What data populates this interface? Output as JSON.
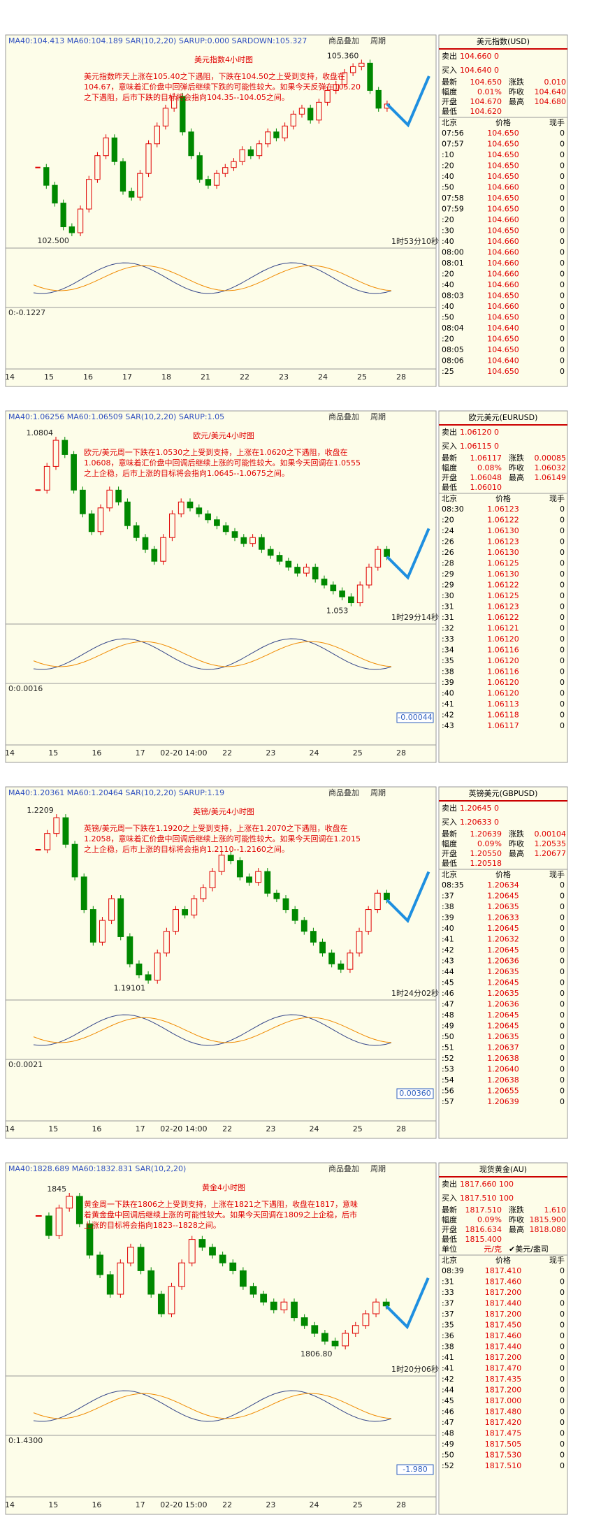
{
  "panels": [
    {
      "title": "美元指数4小时图",
      "indicator": "MA40:104.413 MA60:104.189 SAR(10,2,20) SARUP:0.000 SARDOWN:105.327",
      "buttons": [
        "商品叠加",
        "周期"
      ],
      "annotation": "美元指数昨天上涨在105.40之下遇阻，下跌在104.50之上受到支持，收盘在104.67，意味着汇价盘中回弹后继续下跌的可能性较大。如果今天反弹在105.20之下遇阻，后市下跌的目标将会指向104.35--104.05之间。",
      "high_label": "105.360",
      "low_label": "102.500",
      "timer": "1时53分10秒",
      "macd_label": "0:-0.1227",
      "x_labels": [
        "14",
        "15",
        "16",
        "17",
        "18",
        "21",
        "22",
        "23",
        "24",
        "25",
        "28"
      ],
      "ylim": [
        102.3,
        105.6
      ],
      "closes": [
        103.6,
        103.3,
        103.0,
        102.6,
        102.5,
        102.9,
        103.4,
        103.8,
        104.1,
        103.7,
        103.2,
        103.1,
        103.5,
        104.0,
        104.3,
        104.6,
        104.8,
        104.2,
        103.8,
        103.4,
        103.3,
        103.5,
        103.6,
        103.7,
        103.9,
        103.8,
        104.0,
        104.2,
        104.1,
        104.3,
        104.5,
        104.6,
        104.4,
        104.7,
        104.9,
        105.0,
        105.2,
        105.3,
        105.36,
        104.9,
        104.6,
        104.67
      ],
      "quote": {
        "name": "美元指数(USD)",
        "sell": [
          "卖出",
          "104.660 0"
        ],
        "buy": [
          "买入",
          "104.640 0"
        ],
        "stats": [
          [
            "最新",
            "104.650",
            "涨跌",
            "0.010"
          ],
          [
            "幅度",
            "0.01%",
            "昨收",
            "104.640"
          ],
          [
            "开盘",
            "104.670",
            "最高",
            "104.680"
          ],
          [
            "最低",
            "104.620"
          ]
        ],
        "header": [
          "北京",
          "价格",
          "现手"
        ],
        "rows": [
          [
            "07:56",
            "104.650",
            "0"
          ],
          [
            "07:57",
            "104.650",
            "0"
          ],
          [
            ":10",
            "104.650",
            "0"
          ],
          [
            ":20",
            "104.650",
            "0"
          ],
          [
            ":40",
            "104.650",
            "0"
          ],
          [
            ":50",
            "104.660",
            "0"
          ],
          [
            "07:58",
            "104.650",
            "0"
          ],
          [
            "07:59",
            "104.650",
            "0"
          ],
          [
            ":20",
            "104.660",
            "0"
          ],
          [
            ":30",
            "104.650",
            "0"
          ],
          [
            ":40",
            "104.660",
            "0"
          ],
          [
            "08:00",
            "104.660",
            "0"
          ],
          [
            "08:01",
            "104.660",
            "0"
          ],
          [
            ":20",
            "104.660",
            "0"
          ],
          [
            ":40",
            "104.660",
            "0"
          ],
          [
            "08:03",
            "104.650",
            "0"
          ],
          [
            ":40",
            "104.660",
            "0"
          ],
          [
            ":50",
            "104.650",
            "0"
          ],
          [
            "08:04",
            "104.640",
            "0"
          ],
          [
            ":20",
            "104.650",
            "0"
          ],
          [
            "08:05",
            "104.650",
            "0"
          ],
          [
            "08:06",
            "104.640",
            "0"
          ],
          [
            ":25",
            "104.650",
            "0"
          ]
        ]
      }
    },
    {
      "title": "欧元/美元4小时图",
      "indicator": "MA40:1.06256 MA60:1.06509 SAR(10,2,20) SARUP:1.05",
      "buttons": [
        "商品叠加",
        "周期"
      ],
      "annotation": "欧元/美元周一下跌在1.0530之上受到支持，上涨在1.0620之下遇阻，收盘在1.0608，意味着汇价盘中回调后继续上涨的可能性较大。如果今天回调在1.0555之上企稳，后市上涨的目标将会指向1.0645--1.0675之间。",
      "high_label": "1.0804",
      "low_label": "1.053",
      "timer": "1时29分14秒",
      "macd_label": "0:0.0016",
      "right_label": "-0.00044",
      "x_labels": [
        "14",
        "15",
        "16",
        "17",
        "02-20 14:00",
        "22",
        "23",
        "24",
        "25",
        "28"
      ],
      "ylim": [
        1.05,
        1.083
      ],
      "closes": [
        1.072,
        1.076,
        1.0804,
        1.078,
        1.072,
        1.068,
        1.065,
        1.069,
        1.072,
        1.07,
        1.066,
        1.064,
        1.062,
        1.06,
        1.064,
        1.068,
        1.07,
        1.069,
        1.068,
        1.067,
        1.066,
        1.065,
        1.064,
        1.063,
        1.064,
        1.062,
        1.061,
        1.06,
        1.059,
        1.058,
        1.059,
        1.057,
        1.056,
        1.055,
        1.054,
        1.053,
        1.056,
        1.059,
        1.062,
        1.0608
      ],
      "quote": {
        "name": "欧元美元(EURUSD)",
        "sell": [
          "卖出",
          "1.06120 0"
        ],
        "buy": [
          "买入",
          "1.06115 0"
        ],
        "stats": [
          [
            "最新",
            "1.06117",
            "涨跌",
            "0.00085"
          ],
          [
            "幅度",
            "0.08%",
            "昨收",
            "1.06032"
          ],
          [
            "开盘",
            "1.06048",
            "最高",
            "1.06149"
          ],
          [
            "最低",
            "1.06010"
          ]
        ],
        "header": [
          "北京",
          "价格",
          "现手"
        ],
        "rows": [
          [
            "08:30",
            "1.06123",
            "0"
          ],
          [
            ":20",
            "1.06122",
            "0"
          ],
          [
            ":24",
            "1.06130",
            "0"
          ],
          [
            ":26",
            "1.06123",
            "0"
          ],
          [
            ":26",
            "1.06130",
            "0"
          ],
          [
            ":28",
            "1.06125",
            "0"
          ],
          [
            ":29",
            "1.06130",
            "0"
          ],
          [
            ":29",
            "1.06122",
            "0"
          ],
          [
            ":30",
            "1.06125",
            "0"
          ],
          [
            ":31",
            "1.06123",
            "0"
          ],
          [
            ":31",
            "1.06122",
            "0"
          ],
          [
            ":32",
            "1.06121",
            "0"
          ],
          [
            ":33",
            "1.06120",
            "0"
          ],
          [
            ":34",
            "1.06116",
            "0"
          ],
          [
            ":35",
            "1.06120",
            "0"
          ],
          [
            ":38",
            "1.06116",
            "0"
          ],
          [
            ":39",
            "1.06120",
            "0"
          ],
          [
            ":40",
            "1.06120",
            "0"
          ],
          [
            ":41",
            "1.06113",
            "0"
          ],
          [
            ":42",
            "1.06118",
            "0"
          ],
          [
            ":43",
            "1.06117",
            "0"
          ]
        ]
      }
    },
    {
      "title": "英镑/美元4小时图",
      "indicator": "MA40:1.20361 MA60:1.20464 SAR(10,2,20) SARUP:1.19",
      "buttons": [
        "商品叠加",
        "周期"
      ],
      "annotation": "英镑/美元周一下跌在1.1920之上受到支持，上涨在1.2070之下遇阻，收盘在1.2058，意味着汇价盘中回调后继续上涨的可能性较大。如果今天回调在1.2015之上企稳，后市上涨的目标将会指向1.2110--1.2160之间。",
      "high_label": "1.2209",
      "low_label": "1.19101",
      "timer": "1时24分02秒",
      "macd_label": "0:0.0021",
      "right_label": "0.00360",
      "x_labels": [
        "14",
        "15",
        "16",
        "17",
        "02-20 14:00",
        "22",
        "23",
        "24",
        "25",
        "28"
      ],
      "ylim": [
        1.188,
        1.224
      ],
      "closes": [
        1.215,
        1.218,
        1.2209,
        1.216,
        1.21,
        1.204,
        1.198,
        1.202,
        1.206,
        1.199,
        1.194,
        1.192,
        1.191,
        1.196,
        1.2,
        1.204,
        1.203,
        1.206,
        1.208,
        1.211,
        1.214,
        1.213,
        1.21,
        1.209,
        1.211,
        1.207,
        1.206,
        1.204,
        1.202,
        1.2,
        1.198,
        1.196,
        1.194,
        1.193,
        1.196,
        1.2,
        1.204,
        1.207,
        1.2058
      ],
      "quote": {
        "name": "英镑美元(GBPUSD)",
        "sell": [
          "卖出",
          "1.20645 0"
        ],
        "buy": [
          "买入",
          "1.20633 0"
        ],
        "stats": [
          [
            "最新",
            "1.20639",
            "涨跌",
            "0.00104"
          ],
          [
            "幅度",
            "0.09%",
            "昨收",
            "1.20535"
          ],
          [
            "开盘",
            "1.20550",
            "最高",
            "1.20677"
          ],
          [
            "最低",
            "1.20518"
          ]
        ],
        "header": [
          "北京",
          "价格",
          "现手"
        ],
        "rows": [
          [
            "08:35",
            "1.20634",
            "0"
          ],
          [
            ":37",
            "1.20645",
            "0"
          ],
          [
            ":38",
            "1.20635",
            "0"
          ],
          [
            ":39",
            "1.20633",
            "0"
          ],
          [
            ":40",
            "1.20645",
            "0"
          ],
          [
            ":41",
            "1.20632",
            "0"
          ],
          [
            ":42",
            "1.20645",
            "0"
          ],
          [
            ":43",
            "1.20636",
            "0"
          ],
          [
            ":44",
            "1.20635",
            "0"
          ],
          [
            ":45",
            "1.20645",
            "0"
          ],
          [
            ":46",
            "1.20635",
            "0"
          ],
          [
            ":47",
            "1.20636",
            "0"
          ],
          [
            ":48",
            "1.20645",
            "0"
          ],
          [
            ":49",
            "1.20645",
            "0"
          ],
          [
            ":50",
            "1.20635",
            "0"
          ],
          [
            ":51",
            "1.20637",
            "0"
          ],
          [
            ":52",
            "1.20638",
            "0"
          ],
          [
            ":53",
            "1.20640",
            "0"
          ],
          [
            ":54",
            "1.20638",
            "0"
          ],
          [
            ":56",
            "1.20655",
            "0"
          ],
          [
            ":57",
            "1.20639",
            "0"
          ]
        ]
      }
    },
    {
      "title": "黄金4小时图",
      "indicator": "MA40:1828.689 MA60:1832.831 SAR(10,2,20)",
      "buttons": [
        "商品叠加",
        "周期"
      ],
      "annotation": "黄金周一下跌在1806之上受到支持，上涨在1821之下遇阻，收盘在1817，意味着黄金盘中回调后继续上涨的可能性较大。如果今天回调在1809之上企稳，后市上涨的目标将会指向1823--1828之间。",
      "high_label": "1845",
      "low_label": "1806.80",
      "timer": "1时20分06秒",
      "macd_label": "0:1.4300",
      "right_label": "-1.980",
      "x_labels": [
        "14",
        "15",
        "16",
        "17",
        "02-20 15:00",
        "22",
        "23",
        "24",
        "25",
        "28"
      ],
      "ylim": [
        1800,
        1850
      ],
      "closes": [
        1840,
        1835,
        1842,
        1845,
        1838,
        1830,
        1825,
        1820,
        1828,
        1832,
        1826,
        1820,
        1815,
        1822,
        1828,
        1834,
        1832,
        1830,
        1828,
        1826,
        1822,
        1820,
        1818,
        1816,
        1818,
        1814,
        1812,
        1810,
        1808,
        1806.8,
        1810,
        1812,
        1815,
        1818,
        1817
      ],
      "quote": {
        "name": "现货黄金(AU)",
        "sell": [
          "卖出",
          "1817.660 100"
        ],
        "buy": [
          "买入",
          "1817.510 100"
        ],
        "stats": [
          [
            "最新",
            "1817.510",
            "涨跌",
            "1.610"
          ],
          [
            "幅度",
            "0.09%",
            "昨收",
            "1815.900"
          ],
          [
            "开盘",
            "1816.634",
            "最高",
            "1818.080"
          ],
          [
            "最低",
            "1815.400"
          ],
          [
            "单位",
            "元/克",
            "✔美元/盎司"
          ]
        ],
        "header": [
          "北京",
          "价格",
          "现手"
        ],
        "rows": [
          [
            "08:39",
            "1817.410",
            "0"
          ],
          [
            ":31",
            "1817.460",
            "0"
          ],
          [
            ":33",
            "1817.200",
            "0"
          ],
          [
            ":37",
            "1817.440",
            "0"
          ],
          [
            ":37",
            "1817.200",
            "0"
          ],
          [
            ":35",
            "1817.450",
            "0"
          ],
          [
            ":36",
            "1817.460",
            "0"
          ],
          [
            ":38",
            "1817.440",
            "0"
          ],
          [
            ":41",
            "1817.200",
            "0"
          ],
          [
            ":41",
            "1817.470",
            "0"
          ],
          [
            ":42",
            "1817.435",
            "0"
          ],
          [
            ":44",
            "1817.200",
            "0"
          ],
          [
            ":45",
            "1817.000",
            "0"
          ],
          [
            ":46",
            "1817.480",
            "0"
          ],
          [
            ":47",
            "1817.420",
            "0"
          ],
          [
            ":48",
            "1817.475",
            "0"
          ],
          [
            ":49",
            "1817.505",
            "0"
          ],
          [
            ":50",
            "1817.530",
            "0"
          ],
          [
            ":52",
            "1817.510",
            "0"
          ]
        ]
      }
    }
  ]
}
